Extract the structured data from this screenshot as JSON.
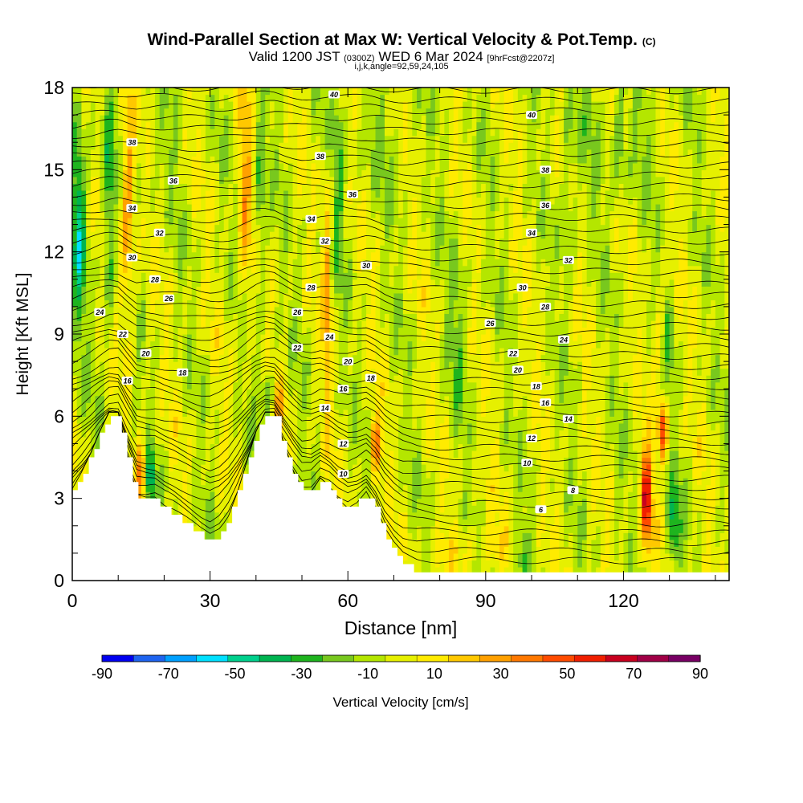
{
  "chart_data": {
    "type": "heatmap",
    "title": "Wind-Parallel Section at Max W: Vertical Velocity & Pot.Temp.",
    "title_suffix": "(C)",
    "subtitle_main_a": "Valid 1200 JST",
    "subtitle_small_a": "(0300Z)",
    "subtitle_main_b": "WED 6 Mar 2024",
    "subtitle_small_b": "[9hrFcst@2207z]",
    "subtitle2": "i,j,k,angle=92,59,24,105",
    "xlabel": "Distance [nm]",
    "ylabel": "Height [Kft MSL]",
    "xlim": [
      0,
      143
    ],
    "ylim": [
      0,
      18
    ],
    "x_ticks": [
      0,
      30,
      60,
      90,
      120
    ],
    "y_ticks": [
      0,
      3,
      6,
      9,
      12,
      15,
      18
    ],
    "colorbar": {
      "label": "Vertical Velocity [cm/s]",
      "min": -90,
      "max": 90,
      "step": 10,
      "tick_labels": [
        "-90",
        "-70",
        "-50",
        "-30",
        "-10",
        "10",
        "30",
        "50",
        "70",
        "90"
      ],
      "colors": [
        "#0000f0",
        "#1e64f0",
        "#00a0ff",
        "#00e0ff",
        "#00d08c",
        "#00b450",
        "#1eb41e",
        "#78c81e",
        "#b4e600",
        "#e6f000",
        "#ffeb00",
        "#ffc800",
        "#ffa000",
        "#ff7800",
        "#ff4b00",
        "#f01e00",
        "#c8001e",
        "#a00046",
        "#780064"
      ]
    },
    "terrain_profile": {
      "x": [
        0,
        2,
        4,
        6,
        8,
        10,
        12,
        14,
        16,
        18,
        20,
        22,
        24,
        26,
        28,
        30,
        32,
        34,
        36,
        38,
        40,
        42,
        44,
        46,
        48,
        50,
        52,
        54,
        56,
        58,
        60,
        62,
        64,
        66,
        68,
        70,
        72,
        75,
        80,
        90,
        100,
        110,
        120,
        125,
        130,
        135,
        143
      ],
      "height": [
        3.3,
        3.9,
        4.6,
        5.4,
        6.1,
        6.1,
        4.5,
        3.1,
        3.0,
        3.0,
        2.7,
        2.5,
        2.2,
        1.9,
        1.6,
        1.4,
        1.7,
        2.3,
        3.2,
        4.3,
        5.4,
        6.1,
        6.1,
        5.0,
        4.0,
        3.2,
        3.2,
        3.7,
        3.4,
        2.9,
        2.6,
        2.8,
        3.2,
        2.6,
        1.6,
        1.0,
        0.6,
        0.4,
        0.3,
        0.3,
        0.3,
        0.3,
        0.3,
        0.3,
        0.3,
        0.3,
        0.3
      ]
    },
    "w_features": [
      {
        "x": 12.0,
        "z": 14.0,
        "w": 40,
        "sx": 1.6,
        "sz": 4.5
      },
      {
        "x": 8.0,
        "z": 13.0,
        "w": -30,
        "sx": 1.2,
        "sz": 4.0
      },
      {
        "x": 1.5,
        "z": 13.0,
        "w": -40,
        "sx": 1.4,
        "sz": 4.0
      },
      {
        "x": 15.0,
        "z": 4.0,
        "w": 45,
        "sx": 1.2,
        "sz": 1.2
      },
      {
        "x": 17.0,
        "z": 3.8,
        "w": -40,
        "sx": 1.0,
        "sz": 1.0
      },
      {
        "x": 37.5,
        "z": 14.0,
        "w": 30,
        "sx": 1.5,
        "sz": 4.0
      },
      {
        "x": 41.0,
        "z": 14.5,
        "w": -25,
        "sx": 1.2,
        "sz": 4.0
      },
      {
        "x": 42.5,
        "z": 6.8,
        "w": -30,
        "sx": 1.5,
        "sz": 0.8
      },
      {
        "x": 55.5,
        "z": 11.0,
        "w": 30,
        "sx": 1.0,
        "sz": 4.5
      },
      {
        "x": 58.0,
        "z": 14.0,
        "w": -18,
        "sx": 1.0,
        "sz": 4.0
      },
      {
        "x": 66.0,
        "z": 5.0,
        "w": 45,
        "sx": 1.2,
        "sz": 1.0
      },
      {
        "x": 45.0,
        "z": 6.5,
        "w": 20,
        "sx": 1.5,
        "sz": 1.0
      },
      {
        "x": 84.0,
        "z": 9.0,
        "w": -15,
        "sx": 2.0,
        "sz": 3.0
      },
      {
        "x": 108.0,
        "z": 14.0,
        "w": -15,
        "sx": 1.5,
        "sz": 4.0
      },
      {
        "x": 119.0,
        "z": 16.0,
        "w": -20,
        "sx": 1.2,
        "sz": 2.5
      },
      {
        "x": 125.0,
        "z": 3.0,
        "w": 70,
        "sx": 1.2,
        "sz": 1.8
      },
      {
        "x": 128.5,
        "z": 5.5,
        "w": 60,
        "sx": 1.0,
        "sz": 1.0
      },
      {
        "x": 131.0,
        "z": 2.0,
        "w": -35,
        "sx": 1.4,
        "sz": 1.5
      },
      {
        "x": 127.5,
        "z": 9.0,
        "w": 20,
        "sx": 1.5,
        "sz": 1.5
      },
      {
        "x": 130.0,
        "z": 9.0,
        "w": -20,
        "sx": 1.0,
        "sz": 1.5
      },
      {
        "x": 88.0,
        "z": 1.2,
        "w": 15,
        "sx": 8.0,
        "sz": 0.8
      },
      {
        "x": 98.0,
        "z": 1.0,
        "w": -20,
        "sx": 1.5,
        "sz": 1.0
      }
    ],
    "theta_contour_labels": [
      {
        "x": 57,
        "z": 17.75,
        "t": "40"
      },
      {
        "x": 100,
        "z": 17.0,
        "t": "40"
      },
      {
        "x": 13,
        "z": 16.0,
        "t": "38"
      },
      {
        "x": 54,
        "z": 15.5,
        "t": "38"
      },
      {
        "x": 103,
        "z": 15.0,
        "t": "38"
      },
      {
        "x": 22,
        "z": 14.6,
        "t": "36"
      },
      {
        "x": 61,
        "z": 14.1,
        "t": "36"
      },
      {
        "x": 103,
        "z": 13.7,
        "t": "36"
      },
      {
        "x": 13,
        "z": 13.6,
        "t": "34"
      },
      {
        "x": 52,
        "z": 13.2,
        "t": "34"
      },
      {
        "x": 100,
        "z": 12.7,
        "t": "34"
      },
      {
        "x": 19,
        "z": 12.7,
        "t": "32"
      },
      {
        "x": 55,
        "z": 12.4,
        "t": "32"
      },
      {
        "x": 108,
        "z": 11.7,
        "t": "32"
      },
      {
        "x": 13,
        "z": 11.8,
        "t": "30"
      },
      {
        "x": 64,
        "z": 11.5,
        "t": "30"
      },
      {
        "x": 98,
        "z": 10.7,
        "t": "30"
      },
      {
        "x": 18,
        "z": 11.0,
        "t": "28"
      },
      {
        "x": 52,
        "z": 10.7,
        "t": "28"
      },
      {
        "x": 103,
        "z": 10.0,
        "t": "28"
      },
      {
        "x": 21,
        "z": 10.3,
        "t": "26"
      },
      {
        "x": 49,
        "z": 9.8,
        "t": "26"
      },
      {
        "x": 91,
        "z": 9.4,
        "t": "26"
      },
      {
        "x": 6,
        "z": 9.8,
        "t": "24"
      },
      {
        "x": 56,
        "z": 8.9,
        "t": "24"
      },
      {
        "x": 107,
        "z": 8.8,
        "t": "24"
      },
      {
        "x": 11,
        "z": 9.0,
        "t": "22"
      },
      {
        "x": 49,
        "z": 8.5,
        "t": "22"
      },
      {
        "x": 96,
        "z": 8.3,
        "t": "22"
      },
      {
        "x": 16,
        "z": 8.3,
        "t": "20"
      },
      {
        "x": 60,
        "z": 8.0,
        "t": "20"
      },
      {
        "x": 97,
        "z": 7.7,
        "t": "20"
      },
      {
        "x": 24,
        "z": 7.6,
        "t": "18"
      },
      {
        "x": 65,
        "z": 7.4,
        "t": "18"
      },
      {
        "x": 101,
        "z": 7.1,
        "t": "18"
      },
      {
        "x": 12,
        "z": 7.3,
        "t": "16"
      },
      {
        "x": 59,
        "z": 7.0,
        "t": "16"
      },
      {
        "x": 103,
        "z": 6.5,
        "t": "16"
      },
      {
        "x": 55,
        "z": 6.3,
        "t": "14"
      },
      {
        "x": 108,
        "z": 5.9,
        "t": "14"
      },
      {
        "x": 59,
        "z": 5.0,
        "t": "12"
      },
      {
        "x": 100,
        "z": 5.2,
        "t": "12"
      },
      {
        "x": 59,
        "z": 3.9,
        "t": "10"
      },
      {
        "x": 99,
        "z": 4.3,
        "t": "10"
      },
      {
        "x": 109,
        "z": 3.3,
        "t": "8"
      },
      {
        "x": 102,
        "z": 2.6,
        "t": "6"
      }
    ]
  }
}
